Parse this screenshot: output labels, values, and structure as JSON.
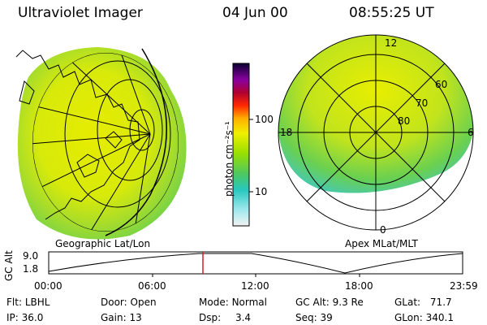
{
  "header": {
    "title": "Ultraviolet Imager",
    "date": "04 Jun 00",
    "time": "08:55:25 UT"
  },
  "left_map": {
    "caption": "Geographic Lat/Lon"
  },
  "right_map": {
    "caption": "Apex MLat/MLT",
    "mlt_labels": [
      "12",
      "18",
      "6",
      "0"
    ],
    "lat_labels": [
      "60",
      "70",
      "80"
    ]
  },
  "colorbar": {
    "label": "photon cm⁻²s⁻¹",
    "ticks": [
      "100",
      "10"
    ]
  },
  "alt_plot": {
    "axis_label": "GC Alt",
    "y_ticks": [
      "9.0",
      "1.8"
    ],
    "x_ticks": [
      "00:00",
      "06:00",
      "12:00",
      "18:00",
      "23:59"
    ],
    "marker_color": "#d02020"
  },
  "info": {
    "flt_label": "Flt:",
    "flt_value": "LBHL",
    "ip_label": "IP:",
    "ip_value": "36.0",
    "door_label": "Door:",
    "door_value": "Open",
    "gain_label": "Gain:",
    "gain_value": "13",
    "mode_label": "Mode:",
    "mode_value": "Normal",
    "dsp_label": "Dsp:",
    "dsp_value": "3.4",
    "gcalt_label": "GC Alt:",
    "gcalt_value": "9.3 Re",
    "seq_label": "Seq:",
    "seq_value": "39",
    "glat_label": "GLat:",
    "glat_value": "71.7",
    "glon_label": "GLon:",
    "glon_value": "340.1"
  }
}
